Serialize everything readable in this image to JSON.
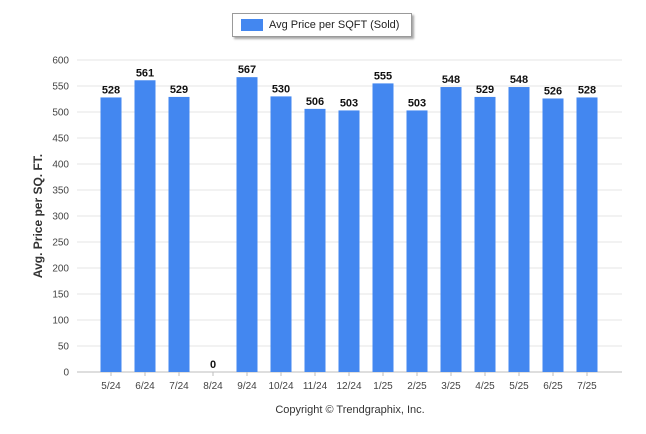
{
  "chart_data": {
    "type": "bar",
    "title": "",
    "legend": {
      "label": "Avg Price per SQFT (Sold)",
      "position": "top-center"
    },
    "ylabel": "Avg. Price per SQ. FT.",
    "xlabel": "",
    "ylim": [
      0,
      600
    ],
    "yticks": [
      0,
      50,
      100,
      150,
      200,
      250,
      300,
      350,
      400,
      450,
      500,
      550,
      600
    ],
    "grid": true,
    "categories": [
      "5/24",
      "6/24",
      "7/24",
      "8/24",
      "9/24",
      "10/24",
      "11/24",
      "12/24",
      "1/25",
      "2/25",
      "3/25",
      "4/25",
      "5/25",
      "6/25",
      "7/25"
    ],
    "series": [
      {
        "name": "Avg Price per SQFT (Sold)",
        "values": [
          528,
          561,
          529,
          0,
          567,
          530,
          506,
          503,
          555,
          503,
          548,
          529,
          548,
          526,
          528
        ]
      }
    ],
    "bar_color": "#4387f0"
  },
  "footer": {
    "copyright": "Copyright © Trendgraphix, Inc."
  }
}
